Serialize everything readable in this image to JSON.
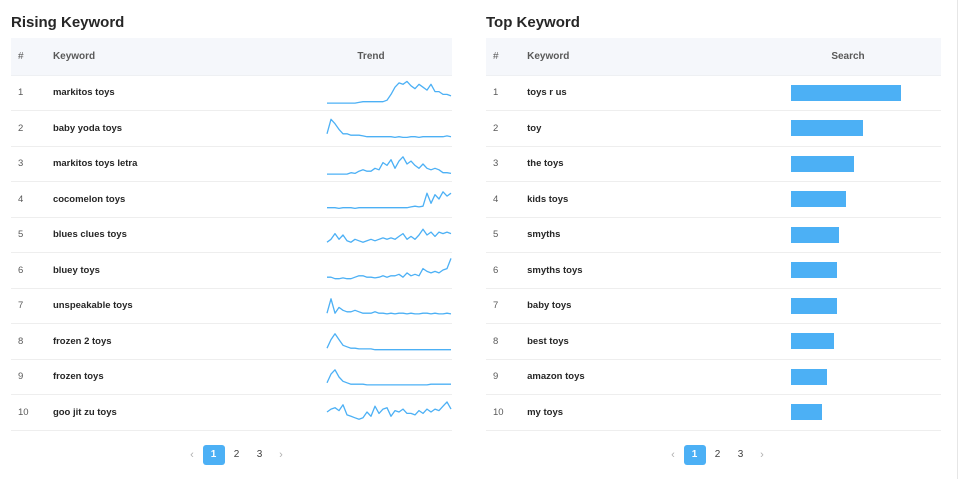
{
  "rising": {
    "title": "Rising Keyword",
    "headers": {
      "num": "#",
      "keyword": "Keyword",
      "trend": "Trend"
    },
    "rows": [
      {
        "num": "1",
        "keyword": "markitos toys",
        "trend": [
          2,
          2,
          2,
          2,
          2,
          2,
          2,
          2,
          2.5,
          3,
          3,
          3,
          3,
          3,
          3,
          4,
          8,
          13,
          16,
          15,
          17,
          14,
          12,
          15,
          13,
          11,
          15,
          10,
          10,
          8,
          8,
          7
        ]
      },
      {
        "num": "2",
        "keyword": "baby yoda toys",
        "trend": [
          5,
          15,
          12,
          8,
          5,
          5,
          4,
          4,
          4,
          3.5,
          3,
          3,
          3,
          3,
          3,
          3,
          3,
          2.5,
          3,
          2.5,
          2.5,
          3,
          3,
          2.5,
          3,
          3,
          3,
          3,
          3,
          3,
          3.5,
          3
        ]
      },
      {
        "num": "3",
        "keyword": "markitos toys letra",
        "trend": [
          2,
          2,
          2,
          2,
          2,
          2,
          3,
          2.5,
          4,
          5,
          4,
          4,
          6,
          5,
          10,
          8,
          12,
          6,
          11,
          14,
          9,
          11,
          8,
          6,
          9,
          6,
          5,
          6,
          5,
          3,
          3,
          2.5
        ]
      },
      {
        "num": "4",
        "keyword": "cocomelon toys",
        "trend": [
          3,
          3,
          3,
          2.5,
          3,
          3,
          3,
          2.5,
          3,
          3,
          3,
          3,
          3,
          3,
          3,
          3,
          3,
          3,
          3,
          3,
          3,
          3.5,
          4,
          3.5,
          4,
          13,
          6,
          12,
          9,
          14,
          11,
          13
        ]
      },
      {
        "num": "5",
        "keyword": "blues clues toys",
        "trend": [
          4,
          6,
          10,
          6,
          9,
          5,
          4,
          6,
          5,
          4,
          5,
          6,
          5,
          6,
          7,
          6,
          7,
          6,
          8,
          10,
          6,
          8,
          6,
          9,
          13,
          9,
          11,
          8,
          11,
          10,
          11,
          10
        ]
      },
      {
        "num": "6",
        "keyword": "bluey toys",
        "trend": [
          4,
          4,
          3,
          3,
          3.5,
          3,
          3,
          4,
          5,
          5,
          4,
          4,
          3.5,
          4,
          5,
          4,
          5,
          5,
          6,
          4,
          7,
          5,
          6,
          5,
          10,
          8,
          7,
          8,
          7,
          9,
          10,
          17
        ]
      },
      {
        "num": "7",
        "keyword": "unspeakable toys",
        "trend": [
          4,
          14,
          4,
          8,
          6,
          5,
          5,
          6,
          5,
          4,
          4,
          4,
          5,
          4,
          4,
          3.5,
          4,
          3.5,
          4,
          4,
          3.5,
          4,
          3.5,
          3.5,
          4,
          4,
          3.5,
          4,
          3.5,
          3.5,
          4,
          3.5
        ]
      },
      {
        "num": "8",
        "keyword": "frozen 2 toys",
        "trend": [
          4,
          10,
          14,
          10,
          6,
          5,
          4,
          4,
          3.5,
          3.5,
          3.5,
          3.5,
          3,
          3,
          3,
          3,
          3,
          3,
          3,
          3,
          3,
          3,
          3,
          3,
          3,
          3,
          3,
          3,
          3,
          3,
          3,
          3
        ]
      },
      {
        "num": "9",
        "keyword": "frozen toys",
        "trend": [
          5,
          11,
          14,
          9,
          6,
          5,
          4,
          4,
          4,
          4,
          3.5,
          3.5,
          3.5,
          3.5,
          3.5,
          3.5,
          3.5,
          3.5,
          3.5,
          3.5,
          3.5,
          3.5,
          3.5,
          3.5,
          3.5,
          3.5,
          4,
          4,
          4,
          4,
          4,
          4
        ]
      },
      {
        "num": "10",
        "keyword": "goo jit zu toys",
        "trend": [
          9,
          11,
          12,
          10,
          14,
          7,
          6,
          5,
          4,
          5,
          9,
          6,
          13,
          8,
          11,
          12,
          6,
          10,
          9,
          11,
          8,
          8,
          7,
          10,
          8,
          11,
          9,
          11,
          10,
          13,
          16,
          11
        ]
      }
    ]
  },
  "top": {
    "title": "Top Keyword",
    "headers": {
      "num": "#",
      "keyword": "Keyword",
      "search": "Search"
    },
    "rows": [
      {
        "num": "1",
        "keyword": "toys r us",
        "search": 1.0
      },
      {
        "num": "2",
        "keyword": "toy",
        "search": 0.655
      },
      {
        "num": "3",
        "keyword": "the toys",
        "search": 0.573
      },
      {
        "num": "4",
        "keyword": "kids toys",
        "search": 0.5
      },
      {
        "num": "5",
        "keyword": "smyths",
        "search": 0.436
      },
      {
        "num": "6",
        "keyword": "smyths toys",
        "search": 0.418
      },
      {
        "num": "7",
        "keyword": "baby toys",
        "search": 0.418
      },
      {
        "num": "8",
        "keyword": "best toys",
        "search": 0.391
      },
      {
        "num": "9",
        "keyword": "amazon toys",
        "search": 0.327
      },
      {
        "num": "10",
        "keyword": "my toys",
        "search": 0.282
      }
    ]
  },
  "pagination": {
    "prev": "‹",
    "next": "›",
    "pages": [
      "1",
      "2",
      "3"
    ],
    "active": "1"
  },
  "colors": {
    "accent": "#4cb0f5",
    "header_bg": "#f5f7fb"
  }
}
